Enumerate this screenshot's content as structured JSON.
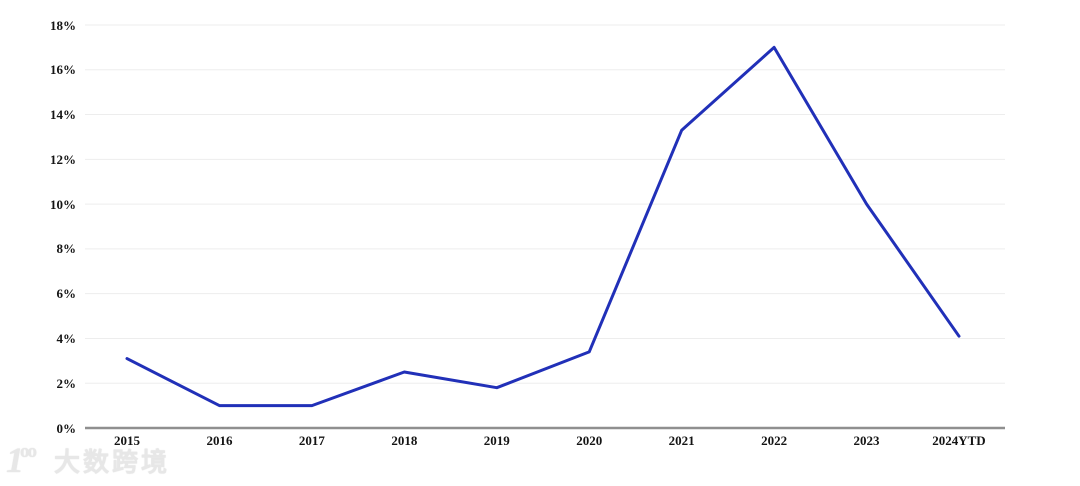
{
  "chart_data": {
    "type": "line",
    "categories": [
      "2015",
      "2016",
      "2017",
      "2018",
      "2019",
      "2020",
      "2021",
      "2022",
      "2023",
      "2024YTD"
    ],
    "values": [
      3.1,
      1.0,
      1.0,
      2.5,
      1.8,
      3.4,
      13.3,
      17.0,
      10.0,
      4.1
    ],
    "title": "",
    "xlabel": "",
    "ylabel": "",
    "ylim": [
      0,
      18
    ],
    "ytick_step": 2,
    "ytick_suffix": "%",
    "grid": true,
    "legend": "none",
    "line_color": "#2130b8",
    "grid_color": "#ededed",
    "axis_color": "#8f8f8f",
    "tick_label_color": "#141414",
    "background_color": "#ffffff"
  },
  "watermark": {
    "logo_one": "1",
    "logo_oo": "oo",
    "text": "大数跨境"
  }
}
